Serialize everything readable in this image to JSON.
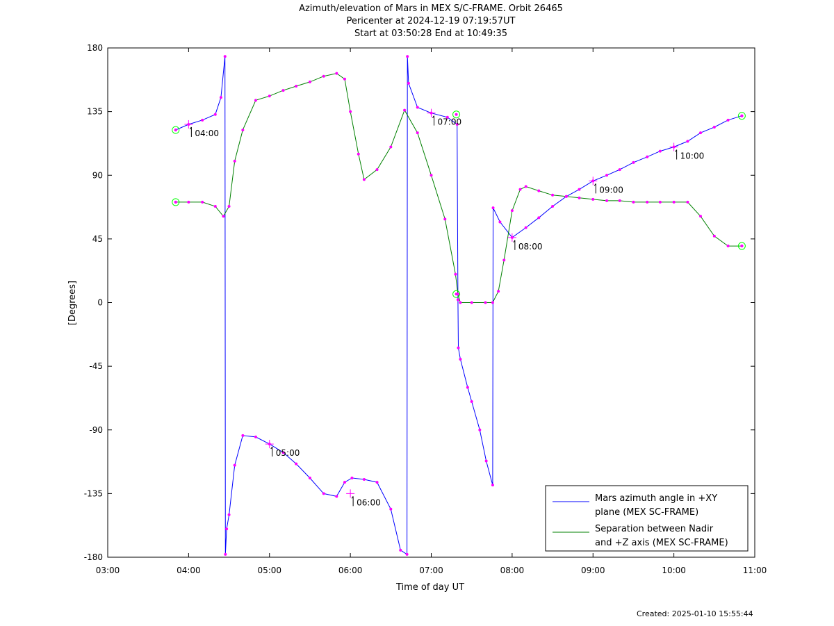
{
  "titles": {
    "line1": "Azimuth/elevation of Mars in MEX S/C-FRAME.  Orbit 26465",
    "line2": "Pericenter at 2024-12-19 07:19:57UT",
    "line3": "Start at 03:50:28 End at 10:49:35"
  },
  "footer": {
    "created": "Created: 2025-01-10 15:55:44"
  },
  "chart_data": {
    "type": "line",
    "xlabel": "Time of day UT",
    "ylabel": "[Degrees]",
    "xlim": [
      3.0,
      11.0
    ],
    "ylim": [
      -180,
      180
    ],
    "x_ticks": [
      3,
      4,
      5,
      6,
      7,
      8,
      9,
      10,
      11
    ],
    "x_tick_labels": [
      "03:00",
      "04:00",
      "05:00",
      "06:00",
      "07:00",
      "08:00",
      "09:00",
      "10:00",
      "11:00"
    ],
    "y_ticks": [
      180,
      135,
      90,
      45,
      0,
      -45,
      -90,
      -135,
      -180
    ],
    "y_tick_labels": [
      "180",
      "135",
      "90",
      "45",
      "0",
      "-45",
      "-90",
      "-135",
      "-180"
    ],
    "legend_position": "bottom-right",
    "series": [
      {
        "name": "Mars azimuth angle in +XY plane (MEX SC-FRAME)",
        "legend_lines": [
          "Mars azimuth angle in +XY",
          "plane (MEX SC-FRAME)"
        ],
        "color": "#0000ff",
        "x": [
          3.84,
          4.0,
          4.17,
          4.33,
          4.4,
          4.45,
          4.455,
          4.47,
          4.5,
          4.57,
          4.67,
          4.83,
          5.0,
          5.17,
          5.33,
          5.5,
          5.67,
          5.83,
          5.93,
          6.02,
          6.17,
          6.33,
          6.5,
          6.62,
          6.7,
          6.705,
          6.72,
          6.83,
          7.0,
          7.2,
          7.32,
          7.33,
          7.335,
          7.36,
          7.45,
          7.5,
          7.6,
          7.68,
          7.76,
          7.765,
          7.85,
          8.0,
          8.17,
          8.33,
          8.5,
          8.67,
          8.83,
          9.0,
          9.17,
          9.33,
          9.5,
          9.67,
          9.83,
          10.0,
          10.17,
          10.33,
          10.5,
          10.67,
          10.84
        ],
        "y": [
          122,
          126,
          129,
          133,
          145,
          174,
          -178,
          -160,
          -150,
          -115,
          -94,
          -95,
          -100,
          -106,
          -114,
          -124,
          -135,
          -137,
          -127,
          -124,
          -125,
          -127,
          -146,
          -175,
          -178,
          174,
          155,
          138,
          134,
          131,
          126,
          2,
          -32,
          -40,
          -60,
          -70,
          -90,
          -112,
          -129,
          67,
          57,
          46,
          53,
          60,
          68,
          75,
          80,
          86,
          90,
          94,
          99,
          103,
          107,
          110,
          114,
          120,
          124,
          129,
          132
        ]
      },
      {
        "name": "Separation between Nadir and +Z axis (MEX SC-FRAME)",
        "legend_lines": [
          "Separation between Nadir",
          "and +Z axis (MEX SC-FRAME)"
        ],
        "color": "#008000",
        "x": [
          3.84,
          4.0,
          4.17,
          4.33,
          4.43,
          4.5,
          4.57,
          4.67,
          4.83,
          5.0,
          5.17,
          5.33,
          5.5,
          5.67,
          5.83,
          5.93,
          6.0,
          6.1,
          6.17,
          6.33,
          6.5,
          6.67,
          6.83,
          7.0,
          7.17,
          7.3,
          7.33,
          7.36,
          7.5,
          7.67,
          7.76,
          7.83,
          7.9,
          8.0,
          8.1,
          8.17,
          8.33,
          8.5,
          8.67,
          8.83,
          9.0,
          9.17,
          9.33,
          9.5,
          9.67,
          9.83,
          10.0,
          10.17,
          10.33,
          10.5,
          10.67,
          10.84
        ],
        "y": [
          71,
          71,
          71,
          68,
          61,
          68,
          100,
          122,
          143,
          146,
          150,
          153,
          156,
          160,
          162,
          158,
          135,
          105,
          87,
          94,
          110,
          136,
          120,
          90,
          59,
          20,
          6,
          0,
          0,
          0,
          0,
          8,
          30,
          65,
          80,
          82,
          79,
          76,
          75,
          74,
          73,
          72,
          72,
          71,
          71,
          71,
          71,
          71,
          61,
          47,
          40,
          40
        ]
      }
    ],
    "markers": {
      "dot_color": "#ff00ff",
      "circle_color": "#00ff00",
      "circles": [
        {
          "x": 3.84,
          "y": 122
        },
        {
          "x": 3.84,
          "y": 71
        },
        {
          "x": 7.31,
          "y": 133
        },
        {
          "x": 7.31,
          "y": 6
        },
        {
          "x": 10.84,
          "y": 132
        },
        {
          "x": 10.84,
          "y": 40
        }
      ]
    },
    "annotations": [
      {
        "text": "04:00",
        "x": 4.0,
        "y": 126
      },
      {
        "text": "05:00",
        "x": 5.0,
        "y": -100
      },
      {
        "text": "06:00",
        "x": 6.0,
        "y": -135
      },
      {
        "text": "07:00",
        "x": 7.0,
        "y": 134
      },
      {
        "text": "08:00",
        "x": 8.0,
        "y": 46
      },
      {
        "text": "09:00",
        "x": 9.0,
        "y": 86
      },
      {
        "text": "10:00",
        "x": 10.0,
        "y": 110
      }
    ]
  }
}
